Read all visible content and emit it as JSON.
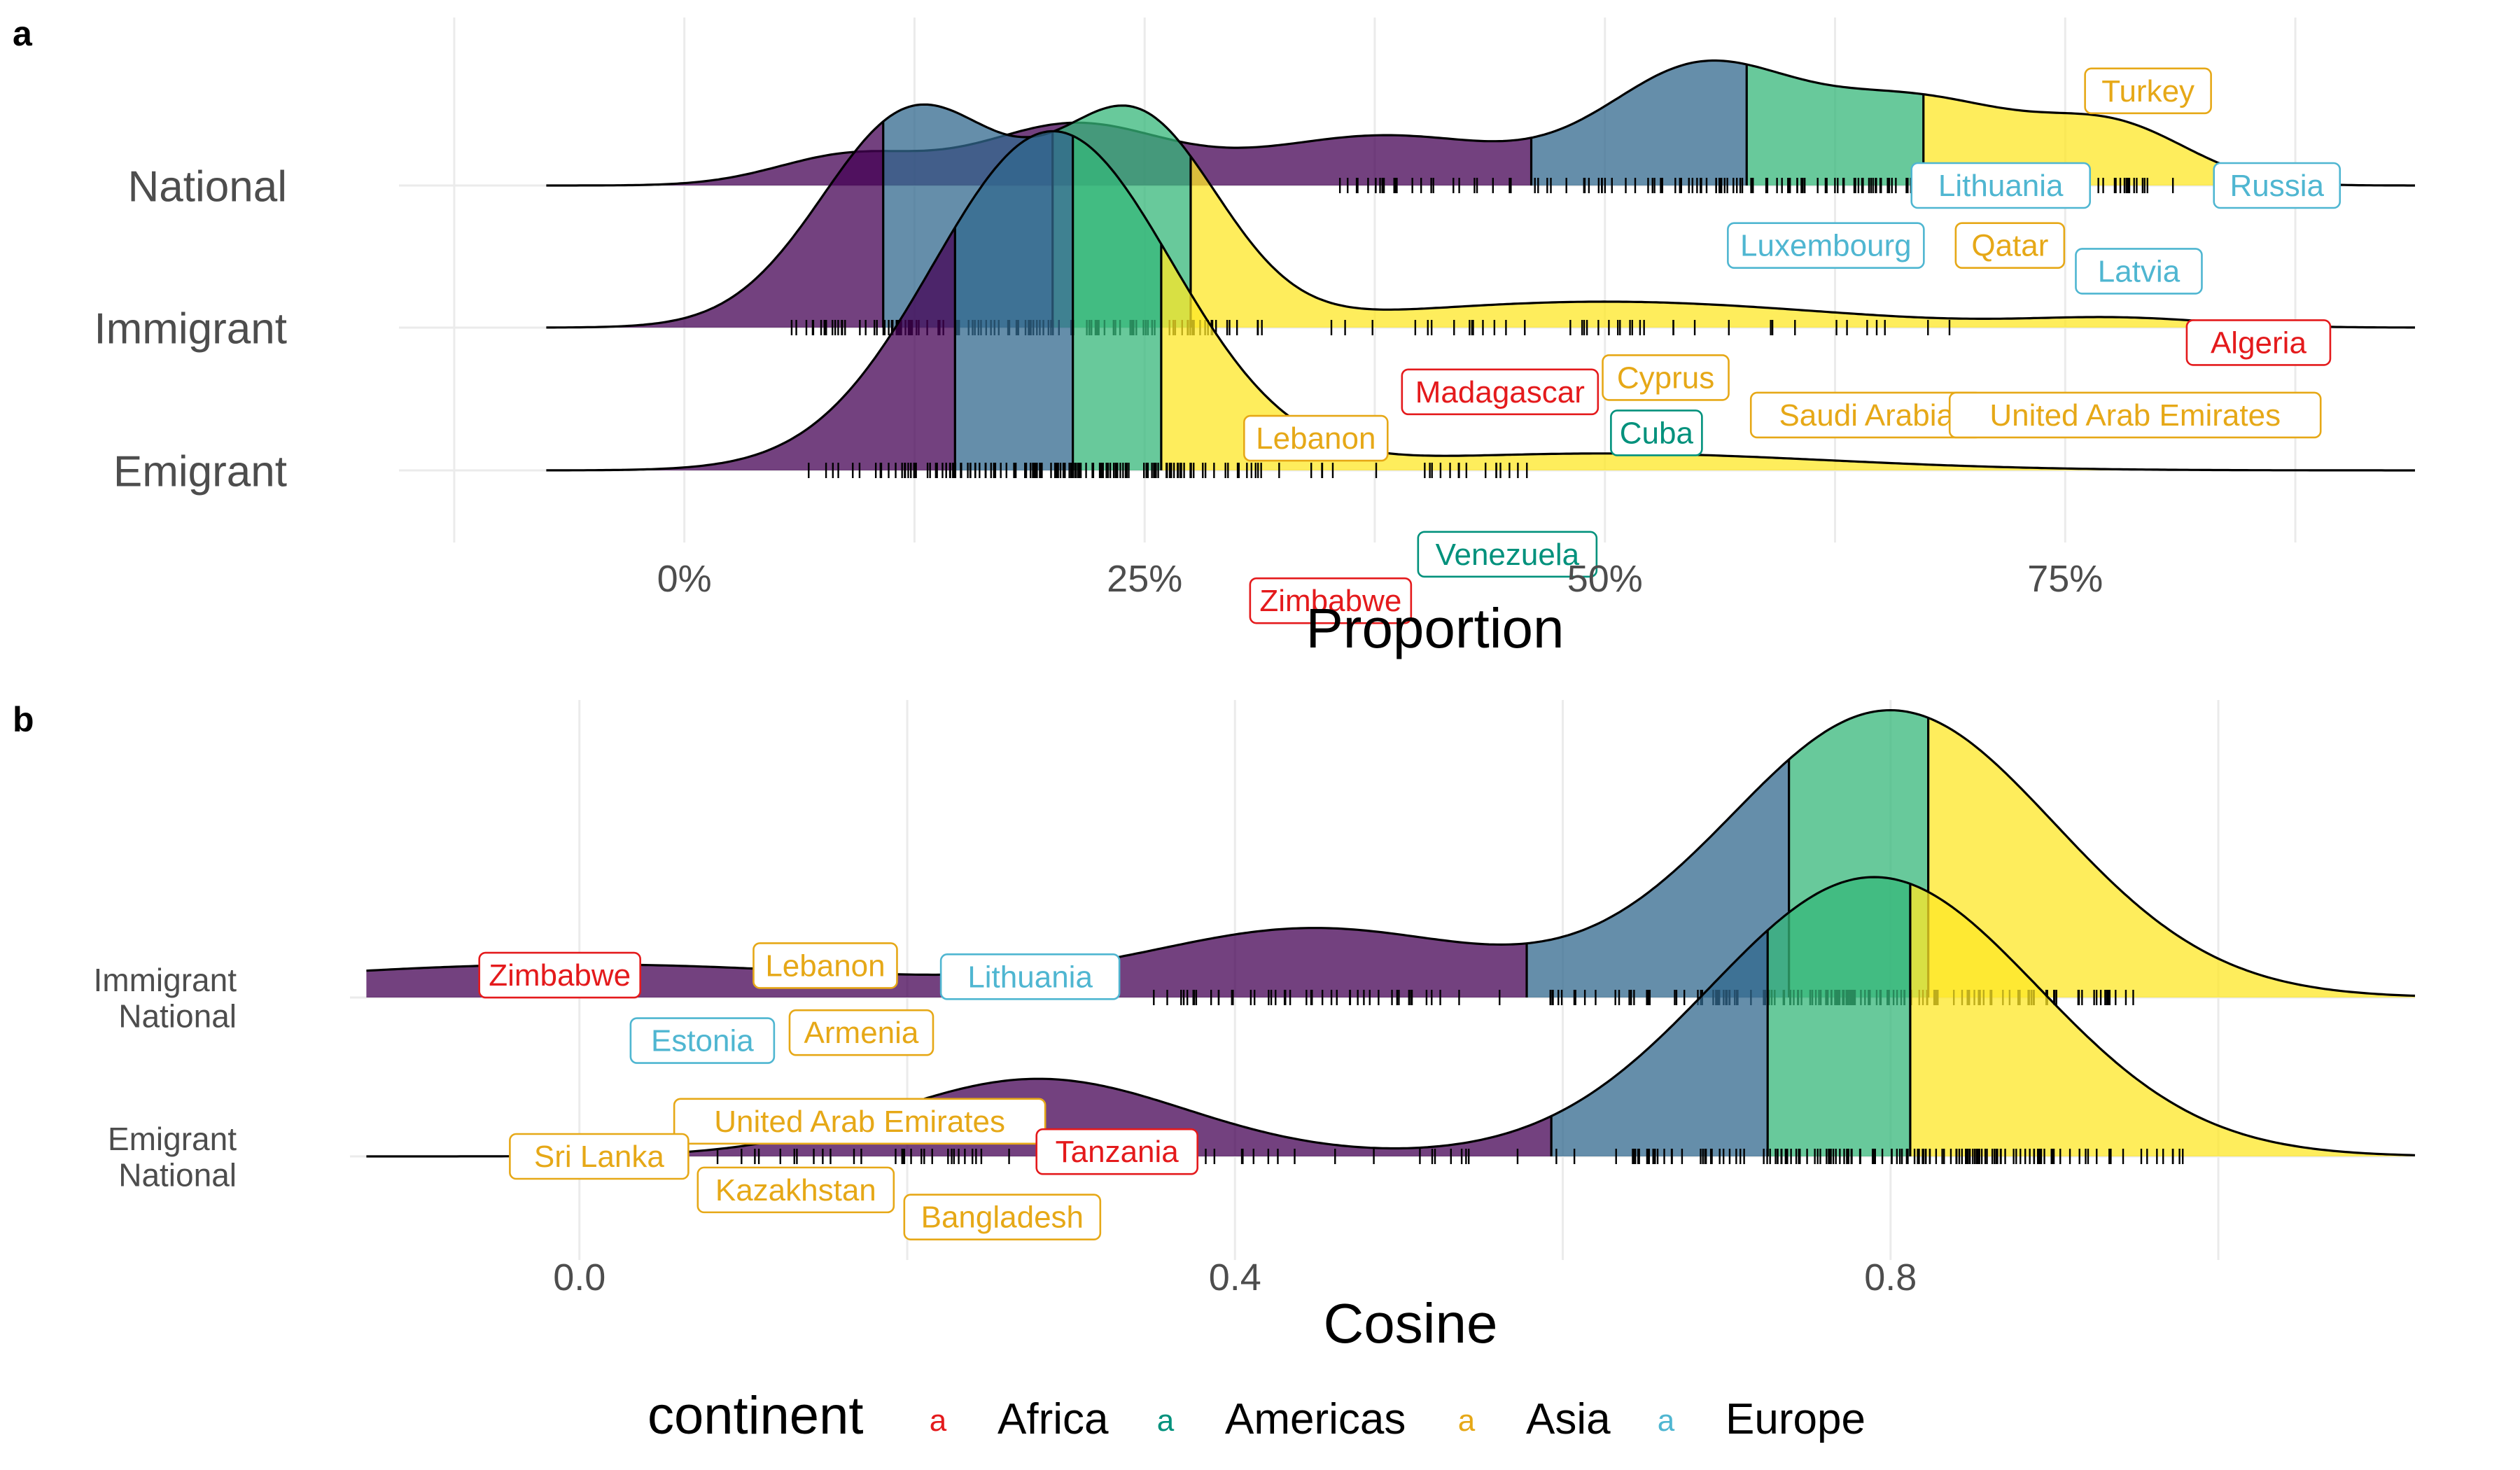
{
  "figure": {
    "legend": {
      "title": "continent",
      "key_glyph": "a",
      "entries": [
        {
          "name": "Africa",
          "color": "#e41a1c"
        },
        {
          "name": "Americas",
          "color": "#00917c"
        },
        {
          "name": "Asia",
          "color": "#e6a817"
        },
        {
          "name": "Europe",
          "color": "#4fb6d1"
        }
      ]
    },
    "palette": {
      "q1": "#440154",
      "q2": "#31688e",
      "q3": "#35b779",
      "q4": "#fde725",
      "outline": "#000000",
      "tick": "#000000"
    }
  },
  "chart_data": [
    {
      "panel": "a",
      "type": "density_ridges",
      "xlabel": "Proportion",
      "xlim": [
        -0.155,
        0.94
      ],
      "x_ticks": [
        0,
        0.25,
        0.5,
        0.75
      ],
      "x_tick_labels": [
        "0%",
        "25%",
        "50%",
        "75%"
      ],
      "legend": "bottom",
      "grid": true,
      "ridges": [
        {
          "name": "National",
          "row_label_lines": [
            "National"
          ],
          "x_range": [
            -0.075,
            0.94
          ],
          "peak_height": 0.7,
          "components": [
            {
              "mean": 0.09,
              "sd": 0.04,
              "weight": 0.6
            },
            {
              "mean": 0.21,
              "sd": 0.05,
              "weight": 1.2
            },
            {
              "mean": 0.38,
              "sd": 0.07,
              "weight": 1.0
            },
            {
              "mean": 0.55,
              "sd": 0.05,
              "weight": 2.2
            },
            {
              "mean": 0.67,
              "sd": 0.06,
              "weight": 1.7
            },
            {
              "mean": 0.78,
              "sd": 0.04,
              "weight": 1.0
            }
          ],
          "quartiles": [
            0.46,
            0.577,
            0.673
          ],
          "rug_range": [
            0.35,
            0.81
          ],
          "rug_count": 160
        },
        {
          "name": "Immigrant",
          "row_label_lines": [
            "Immigrant"
          ],
          "x_range": [
            -0.075,
            0.94
          ],
          "peak_height": 1.25,
          "components": [
            {
              "mean": 0.125,
              "sd": 0.05,
              "weight": 1.0
            },
            {
              "mean": 0.245,
              "sd": 0.045,
              "weight": 0.95
            },
            {
              "mean": 0.5,
              "sd": 0.12,
              "weight": 0.12
            },
            {
              "mean": 0.78,
              "sd": 0.05,
              "weight": 0.04
            }
          ],
          "quartiles": [
            0.108,
            0.2,
            0.275
          ],
          "rug_range": [
            0.05,
            0.72
          ],
          "rug_count": 160
        },
        {
          "name": "Emigrant",
          "row_label_lines": [
            "Emigrant"
          ],
          "x_range": [
            -0.075,
            0.94
          ],
          "peak_height": 1.9,
          "components": [
            {
              "mean": 0.2,
              "sd": 0.065,
              "weight": 1.0
            },
            {
              "mean": 0.5,
              "sd": 0.12,
              "weight": 0.05
            }
          ],
          "quartiles": [
            0.147,
            0.211,
            0.259
          ],
          "rug_range": [
            0.06,
            0.46
          ],
          "rug_count": 170
        }
      ],
      "labels": [
        {
          "text": "Turkey",
          "continent": "Asia",
          "x": 0.795,
          "ridge": "National",
          "dy": 0.53
        },
        {
          "text": "Lithuania",
          "continent": "Europe",
          "x": 0.715,
          "ridge": "National",
          "dy": 0.0
        },
        {
          "text": "Russia",
          "continent": "Europe",
          "x": 0.865,
          "ridge": "National",
          "dy": 0.0
        },
        {
          "text": "Latvia",
          "continent": "Europe",
          "x": 0.79,
          "ridge": "National",
          "dy": -0.48
        },
        {
          "text": "Algeria",
          "continent": "Africa",
          "x": 0.855,
          "ridge": "National",
          "dy": -0.88
        },
        {
          "text": "Luxembourg",
          "continent": "Europe",
          "x": 0.62,
          "ridge": "Immigrant",
          "dy": 0.46
        },
        {
          "text": "Qatar",
          "continent": "Asia",
          "x": 0.72,
          "ridge": "Immigrant",
          "dy": 0.46
        },
        {
          "text": "Cyprus",
          "continent": "Asia",
          "x": 0.533,
          "ridge": "Immigrant",
          "dy": -0.28
        },
        {
          "text": "Saudi Arabia",
          "continent": "Asia",
          "x": 0.642,
          "ridge": "Immigrant",
          "dy": -0.49
        },
        {
          "text": "United Arab Emirates",
          "continent": "Asia",
          "x": 0.788,
          "ridge": "Immigrant",
          "dy": -0.49
        },
        {
          "text": "Madagascar",
          "continent": "Africa",
          "x": 0.443,
          "ridge": "Emigrant",
          "dy": 0.44
        },
        {
          "text": "Lebanon",
          "continent": "Asia",
          "x": 0.343,
          "ridge": "Emigrant",
          "dy": 0.18
        },
        {
          "text": "Cuba",
          "continent": "Americas",
          "x": 0.528,
          "ridge": "Emigrant",
          "dy": 0.21
        },
        {
          "text": "Zimbabwe",
          "continent": "Africa",
          "x": 0.351,
          "ridge": "Emigrant",
          "dy": -0.73
        },
        {
          "text": "Venezuela",
          "continent": "Americas",
          "x": 0.447,
          "ridge": "Emigrant",
          "dy": -0.47
        }
      ]
    },
    {
      "panel": "b",
      "type": "density_ridges",
      "xlabel": "Cosine",
      "xlim": [
        -0.14,
        1.12
      ],
      "x_ticks": [
        0.0,
        0.4,
        0.8
      ],
      "x_tick_labels": [
        "0.0",
        "0.4",
        "0.8"
      ],
      "legend": "bottom",
      "grid": true,
      "ridges": [
        {
          "name": "Immigrant National",
          "row_label_lines": [
            "Immigrant",
            "National"
          ],
          "x_range": [
            -0.13,
            1.12
          ],
          "peak_height": 1.8,
          "components": [
            {
              "mean": 0.0,
              "sd": 0.2,
              "weight": 0.3
            },
            {
              "mean": 0.45,
              "sd": 0.1,
              "weight": 0.6
            },
            {
              "mean": 0.8,
              "sd": 0.1,
              "weight": 2.6
            }
          ],
          "quartiles": [
            0.578,
            0.738,
            0.823
          ],
          "rug_range": [
            0.35,
            0.95
          ],
          "rug_count": 200
        },
        {
          "name": "Emigrant National",
          "row_label_lines": [
            "Emigrant",
            "National"
          ],
          "x_range": [
            -0.13,
            1.12
          ],
          "peak_height": 1.75,
          "components": [
            {
              "mean": 0.28,
              "sd": 0.09,
              "weight": 0.5
            },
            {
              "mean": 0.79,
              "sd": 0.1,
              "weight": 1.8
            }
          ],
          "quartiles": [
            0.593,
            0.725,
            0.812
          ],
          "rug_range": [
            -0.03,
            0.98
          ],
          "rug_count": 230
        }
      ],
      "labels": [
        {
          "text": "Zimbabwe",
          "continent": "Africa",
          "x": -0.012,
          "ridge": "Immigrant National",
          "dy": 0.14
        },
        {
          "text": "Lebanon",
          "continent": "Asia",
          "x": 0.15,
          "ridge": "Immigrant National",
          "dy": 0.2
        },
        {
          "text": "Lithuania",
          "continent": "Europe",
          "x": 0.275,
          "ridge": "Immigrant National",
          "dy": 0.13
        },
        {
          "text": "Estonia",
          "continent": "Europe",
          "x": 0.075,
          "ridge": "Immigrant National",
          "dy": -0.27
        },
        {
          "text": "Armenia",
          "continent": "Asia",
          "x": 0.172,
          "ridge": "Immigrant National",
          "dy": -0.22
        },
        {
          "text": "United Arab Emirates",
          "continent": "Asia",
          "x": 0.171,
          "ridge": "Emigrant National",
          "dy": 0.22
        },
        {
          "text": "Sri Lanka",
          "continent": "Asia",
          "x": 0.012,
          "ridge": "Emigrant National",
          "dy": 0.0
        },
        {
          "text": "Tanzania",
          "continent": "Africa",
          "x": 0.328,
          "ridge": "Emigrant National",
          "dy": 0.03
        },
        {
          "text": "Kazakhstan",
          "continent": "Asia",
          "x": 0.132,
          "ridge": "Emigrant National",
          "dy": -0.21
        },
        {
          "text": "Bangladesh",
          "continent": "Asia",
          "x": 0.258,
          "ridge": "Emigrant National",
          "dy": -0.38
        }
      ]
    }
  ]
}
